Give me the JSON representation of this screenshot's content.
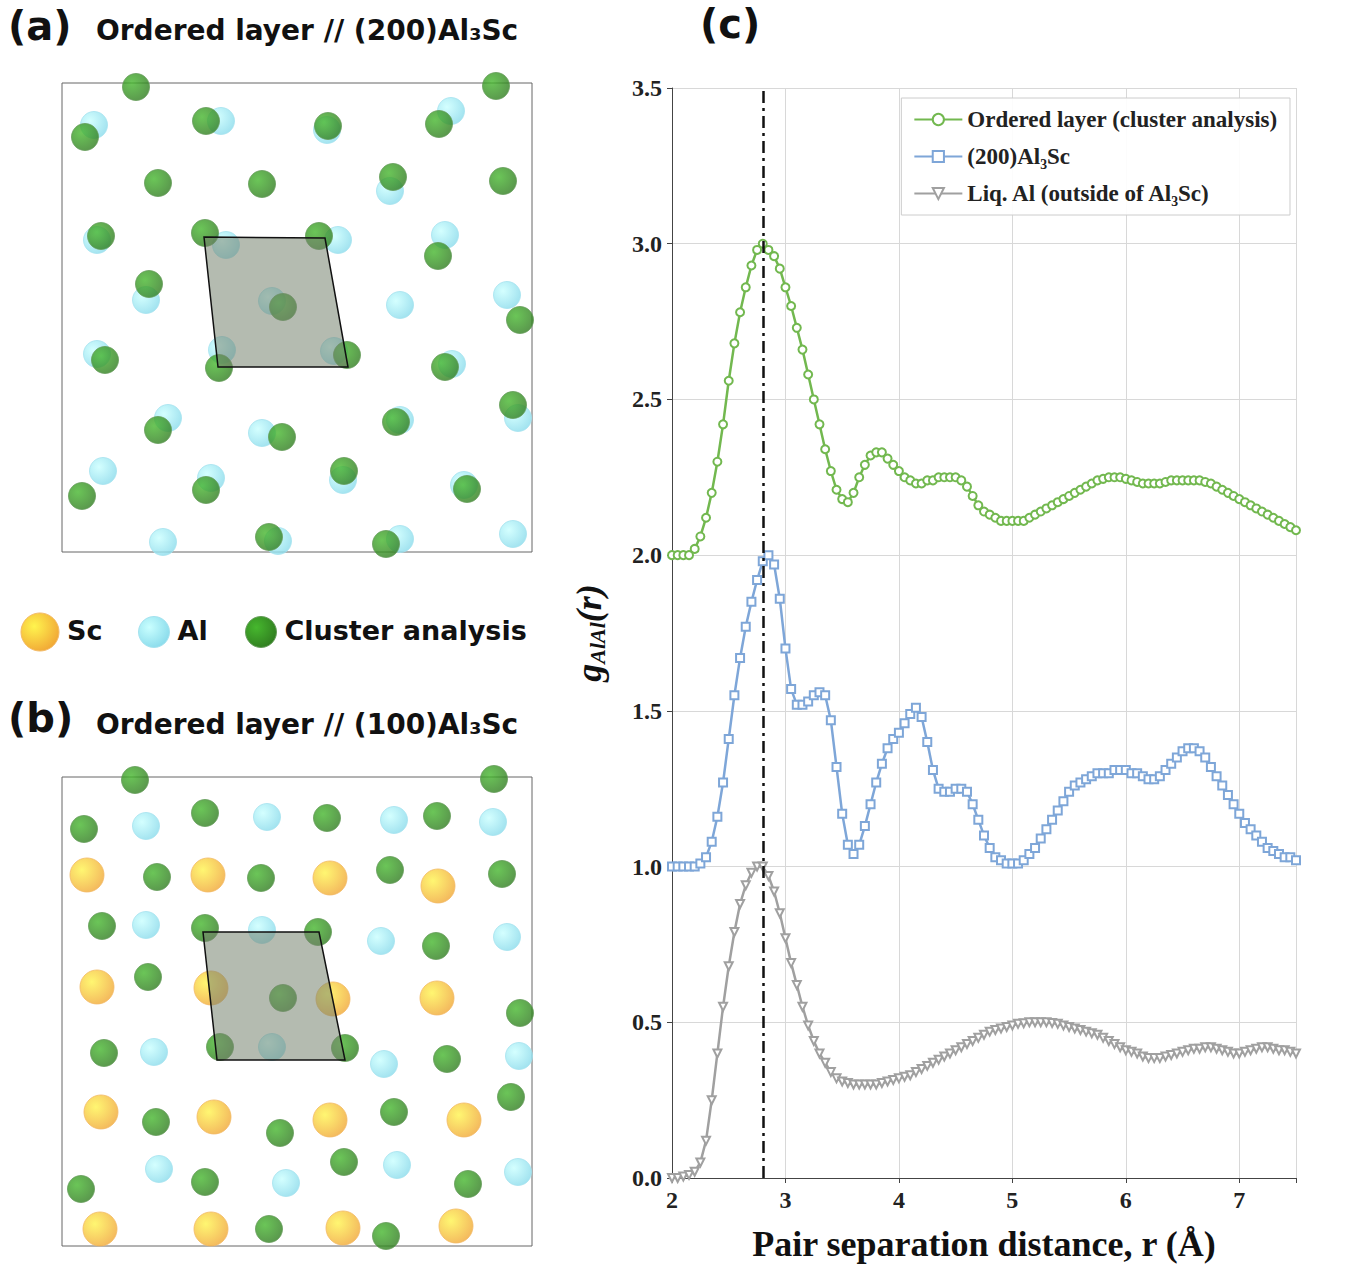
{
  "atom_legend": [
    {
      "name": "Sc",
      "color": "#f0a334",
      "marker": "big_sphere"
    },
    {
      "name": "Al",
      "color": "#86d9ea",
      "marker": "sphere"
    },
    {
      "name": "Cluster analysis",
      "color": "#2f7a1f",
      "marker": "sphere"
    }
  ],
  "chart_data": [
    {
      "type": "scatter",
      "letter": "(a)",
      "title": "Ordered layer // (200)Al₃Sc",
      "xlim": [
        0,
        470
      ],
      "ylim": [
        0,
        469
      ],
      "tick_labels": false,
      "grid": false,
      "series": [
        {
          "name": "Al",
          "color": "#86d9ea",
          "marker": "sphere",
          "points": [
            [
              32,
              42
            ],
            [
              159,
              38
            ],
            [
              389,
              28
            ],
            [
              265,
              47
            ],
            [
              328,
              108
            ],
            [
              35,
              157
            ],
            [
              164,
              162
            ],
            [
              276,
              157
            ],
            [
              383,
              152
            ],
            [
              84,
              217
            ],
            [
              210,
              218
            ],
            [
              338,
              222
            ],
            [
              445,
              212
            ],
            [
              35,
              271
            ],
            [
              160,
              267
            ],
            [
              272,
              268
            ],
            [
              390,
              281
            ],
            [
              106,
              335
            ],
            [
              200,
              350
            ],
            [
              338,
              337
            ],
            [
              456,
              335
            ],
            [
              41,
              388
            ],
            [
              149,
              395
            ],
            [
              281,
              397
            ],
            [
              402,
              402
            ],
            [
              101,
              459
            ],
            [
              216,
              458
            ],
            [
              338,
              456
            ],
            [
              451,
              451
            ]
          ]
        },
        {
          "name": "Cluster analysis",
          "color": "#2f7a1f",
          "marker": "sphere",
          "points": [
            [
              74,
              4
            ],
            [
              434,
              3
            ],
            [
              23,
              54
            ],
            [
              144,
              38
            ],
            [
              266,
              43
            ],
            [
              377,
              41
            ],
            [
              96,
              100
            ],
            [
              200,
              101
            ],
            [
              331,
              94
            ],
            [
              441,
              98
            ],
            [
              39,
              153
            ],
            [
              143,
              150
            ],
            [
              257,
              153
            ],
            [
              376,
              173
            ],
            [
              87,
              201
            ],
            [
              221,
              224
            ],
            [
              458,
              237
            ],
            [
              43,
              277
            ],
            [
              157,
              285
            ],
            [
              285,
              272
            ],
            [
              383,
              284
            ],
            [
              451,
              322
            ],
            [
              96,
              347
            ],
            [
              220,
              354
            ],
            [
              334,
              339
            ],
            [
              282,
              388
            ],
            [
              20,
              413
            ],
            [
              144,
              407
            ],
            [
              405,
              406
            ],
            [
              207,
              454
            ],
            [
              324,
              461
            ]
          ]
        }
      ],
      "unit_cell": [
        [
          142,
          154
        ],
        [
          263,
          155
        ],
        [
          286,
          284
        ],
        [
          156,
          284
        ]
      ]
    },
    {
      "type": "scatter",
      "letter": "(b)",
      "title": "Ordered layer // (100)Al₃Sc",
      "xlim": [
        0,
        470
      ],
      "ylim": [
        0,
        469
      ],
      "tick_labels": false,
      "grid": false,
      "series": [
        {
          "name": "Sc",
          "color": "#f0a334",
          "marker": "big_sphere",
          "points": [
            [
              25,
              98
            ],
            [
              146,
              98
            ],
            [
              268,
              101
            ],
            [
              376,
              109
            ],
            [
              35,
              210
            ],
            [
              149,
              211
            ],
            [
              271,
              222
            ],
            [
              375,
              221
            ],
            [
              39,
              335
            ],
            [
              152,
              340
            ],
            [
              268,
              343
            ],
            [
              402,
              343
            ],
            [
              38,
              452
            ],
            [
              149,
              452
            ],
            [
              281,
              451
            ],
            [
              394,
              449
            ]
          ]
        },
        {
          "name": "Al",
          "color": "#86d9ea",
          "marker": "sphere",
          "points": [
            [
              84,
              49
            ],
            [
              205,
              40
            ],
            [
              332,
              43
            ],
            [
              431,
              45
            ],
            [
              84,
              148
            ],
            [
              200,
              153
            ],
            [
              319,
              164
            ],
            [
              445,
              160
            ],
            [
              92,
              275
            ],
            [
              210,
              270
            ],
            [
              322,
              287
            ],
            [
              457,
              279
            ],
            [
              97,
              392
            ],
            [
              224,
              406
            ],
            [
              335,
              388
            ],
            [
              456,
              395
            ]
          ]
        },
        {
          "name": "Cluster analysis",
          "color": "#2f7a1f",
          "marker": "sphere",
          "points": [
            [
              73,
              3
            ],
            [
              432,
              2
            ],
            [
              22,
              52
            ],
            [
              143,
              36
            ],
            [
              265,
              41
            ],
            [
              375,
              39
            ],
            [
              95,
              100
            ],
            [
              199,
              101
            ],
            [
              328,
              93
            ],
            [
              440,
              97
            ],
            [
              40,
              149
            ],
            [
              143,
              151
            ],
            [
              256,
              155
            ],
            [
              374,
              169
            ],
            [
              86,
              200
            ],
            [
              221,
              221
            ],
            [
              458,
              236
            ],
            [
              42,
              276
            ],
            [
              158,
              270
            ],
            [
              283,
              271
            ],
            [
              385,
              282
            ],
            [
              449,
              320
            ],
            [
              94,
              345
            ],
            [
              218,
              356
            ],
            [
              332,
              335
            ],
            [
              282,
              385
            ],
            [
              19,
              412
            ],
            [
              143,
              405
            ],
            [
              406,
              407
            ],
            [
              207,
              452
            ],
            [
              324,
              459
            ]
          ]
        }
      ],
      "unit_cell": [
        [
          141,
          155
        ],
        [
          257,
          155
        ],
        [
          283,
          283
        ],
        [
          155,
          283
        ]
      ]
    },
    {
      "type": "line",
      "letter": "(c)",
      "x_label": "Pair separation distance, r (Å)",
      "y_label": {
        "text": "g",
        "subscript": "AlAl",
        "suffix": "(r)"
      },
      "xlim": [
        2,
        7.5
      ],
      "xticks": [
        2,
        3,
        4,
        5,
        6,
        7
      ],
      "ylim": [
        0,
        3.5
      ],
      "yticks": [
        {
          "value": 0,
          "label": "0.0"
        },
        {
          "value": 0.5,
          "label": "0.5"
        },
        {
          "value": 1,
          "label": "1.0"
        },
        {
          "value": 1.5,
          "label": "1.5"
        },
        {
          "value": 2,
          "label": "2.0"
        },
        {
          "value": 2.5,
          "label": "2.5"
        },
        {
          "value": 3,
          "label": "3.0"
        },
        {
          "value": 3.5,
          "label": "3.5"
        }
      ],
      "grid": true,
      "legend": "upper right",
      "vline": 2.8,
      "x": [
        2.0,
        2.05,
        2.1,
        2.15,
        2.2,
        2.25,
        2.3,
        2.35,
        2.4,
        2.45,
        2.5,
        2.55,
        2.6,
        2.65,
        2.7,
        2.75,
        2.8,
        2.85,
        2.9,
        2.95,
        3.0,
        3.05,
        3.1,
        3.15,
        3.2,
        3.25,
        3.3,
        3.35,
        3.4,
        3.45,
        3.5,
        3.55,
        3.6,
        3.65,
        3.7,
        3.75,
        3.8,
        3.85,
        3.9,
        3.95,
        4.0,
        4.05,
        4.1,
        4.15,
        4.2,
        4.25,
        4.3,
        4.35,
        4.4,
        4.45,
        4.5,
        4.55,
        4.6,
        4.65,
        4.7,
        4.75,
        4.8,
        4.85,
        4.9,
        4.95,
        5.0,
        5.05,
        5.1,
        5.15,
        5.2,
        5.25,
        5.3,
        5.35,
        5.4,
        5.45,
        5.5,
        5.55,
        5.6,
        5.65,
        5.7,
        5.75,
        5.8,
        5.85,
        5.9,
        5.95,
        6.0,
        6.05,
        6.1,
        6.15,
        6.2,
        6.25,
        6.3,
        6.35,
        6.4,
        6.45,
        6.5,
        6.55,
        6.6,
        6.65,
        6.7,
        6.75,
        6.8,
        6.85,
        6.9,
        6.95,
        7.0,
        7.05,
        7.1,
        7.15,
        7.2,
        7.25,
        7.3,
        7.35,
        7.4,
        7.45,
        7.5
      ],
      "series": [
        {
          "name": "Ordered layer (cluster analysis)",
          "color": "#72b84f",
          "marker": "circle",
          "line_style": "solid",
          "values": [
            2.0,
            2.0,
            2.0,
            2.0,
            2.02,
            2.06,
            2.12,
            2.2,
            2.3,
            2.42,
            2.56,
            2.68,
            2.78,
            2.86,
            2.93,
            2.98,
            3.0,
            2.98,
            2.96,
            2.92,
            2.86,
            2.8,
            2.73,
            2.66,
            2.58,
            2.5,
            2.42,
            2.34,
            2.27,
            2.21,
            2.18,
            2.17,
            2.2,
            2.25,
            2.29,
            2.32,
            2.33,
            2.33,
            2.31,
            2.29,
            2.27,
            2.25,
            2.24,
            2.23,
            2.23,
            2.24,
            2.24,
            2.25,
            2.25,
            2.25,
            2.25,
            2.24,
            2.22,
            2.19,
            2.16,
            2.14,
            2.13,
            2.12,
            2.11,
            2.11,
            2.11,
            2.11,
            2.11,
            2.12,
            2.13,
            2.14,
            2.15,
            2.16,
            2.17,
            2.18,
            2.19,
            2.2,
            2.21,
            2.22,
            2.23,
            2.24,
            2.245,
            2.25,
            2.25,
            2.25,
            2.245,
            2.24,
            2.235,
            2.23,
            2.23,
            2.23,
            2.23,
            2.235,
            2.24,
            2.24,
            2.24,
            2.24,
            2.24,
            2.24,
            2.235,
            2.23,
            2.22,
            2.21,
            2.2,
            2.19,
            2.18,
            2.17,
            2.16,
            2.15,
            2.14,
            2.13,
            2.12,
            2.11,
            2.1,
            2.09,
            2.08
          ]
        },
        {
          "name": "(200)Al₃Sc",
          "color": "#7ea6d8",
          "marker": "square",
          "line_style": "solid",
          "values": [
            1.0,
            1.0,
            1.0,
            1.0,
            1.0,
            1.01,
            1.03,
            1.08,
            1.16,
            1.27,
            1.41,
            1.55,
            1.67,
            1.77,
            1.85,
            1.92,
            1.98,
            2.0,
            1.97,
            1.86,
            1.7,
            1.57,
            1.52,
            1.52,
            1.53,
            1.55,
            1.56,
            1.55,
            1.47,
            1.32,
            1.17,
            1.07,
            1.04,
            1.07,
            1.13,
            1.2,
            1.27,
            1.33,
            1.38,
            1.41,
            1.43,
            1.46,
            1.49,
            1.51,
            1.48,
            1.4,
            1.31,
            1.25,
            1.24,
            1.24,
            1.25,
            1.25,
            1.24,
            1.2,
            1.15,
            1.1,
            1.06,
            1.03,
            1.02,
            1.01,
            1.01,
            1.01,
            1.02,
            1.04,
            1.06,
            1.09,
            1.12,
            1.15,
            1.18,
            1.21,
            1.24,
            1.26,
            1.27,
            1.28,
            1.29,
            1.3,
            1.3,
            1.3,
            1.31,
            1.31,
            1.31,
            1.3,
            1.3,
            1.29,
            1.28,
            1.28,
            1.29,
            1.31,
            1.33,
            1.35,
            1.37,
            1.38,
            1.38,
            1.37,
            1.35,
            1.32,
            1.29,
            1.26,
            1.23,
            1.2,
            1.17,
            1.14,
            1.12,
            1.1,
            1.08,
            1.06,
            1.05,
            1.04,
            1.03,
            1.03,
            1.02
          ]
        },
        {
          "name": "Liq. Al (outside of Al₃Sc)",
          "color": "#a0a0a0",
          "marker": "triangle_down",
          "line_style": "solid",
          "values": [
            0.0,
            0.0,
            0.005,
            0.01,
            0.02,
            0.05,
            0.12,
            0.25,
            0.4,
            0.55,
            0.68,
            0.79,
            0.88,
            0.94,
            0.98,
            1.0,
            1.0,
            0.97,
            0.92,
            0.85,
            0.77,
            0.69,
            0.62,
            0.55,
            0.49,
            0.44,
            0.4,
            0.37,
            0.34,
            0.32,
            0.31,
            0.305,
            0.3,
            0.3,
            0.3,
            0.3,
            0.3,
            0.305,
            0.31,
            0.315,
            0.32,
            0.325,
            0.33,
            0.34,
            0.35,
            0.36,
            0.37,
            0.38,
            0.39,
            0.4,
            0.41,
            0.42,
            0.43,
            0.44,
            0.45,
            0.46,
            0.47,
            0.475,
            0.48,
            0.485,
            0.49,
            0.495,
            0.497,
            0.5,
            0.5,
            0.5,
            0.5,
            0.498,
            0.495,
            0.49,
            0.485,
            0.48,
            0.475,
            0.47,
            0.465,
            0.46,
            0.45,
            0.44,
            0.43,
            0.42,
            0.41,
            0.405,
            0.4,
            0.39,
            0.385,
            0.385,
            0.385,
            0.39,
            0.395,
            0.4,
            0.405,
            0.41,
            0.415,
            0.415,
            0.42,
            0.42,
            0.415,
            0.41,
            0.405,
            0.4,
            0.4,
            0.405,
            0.41,
            0.415,
            0.42,
            0.42,
            0.415,
            0.41,
            0.41,
            0.405,
            0.4
          ]
        }
      ]
    }
  ]
}
